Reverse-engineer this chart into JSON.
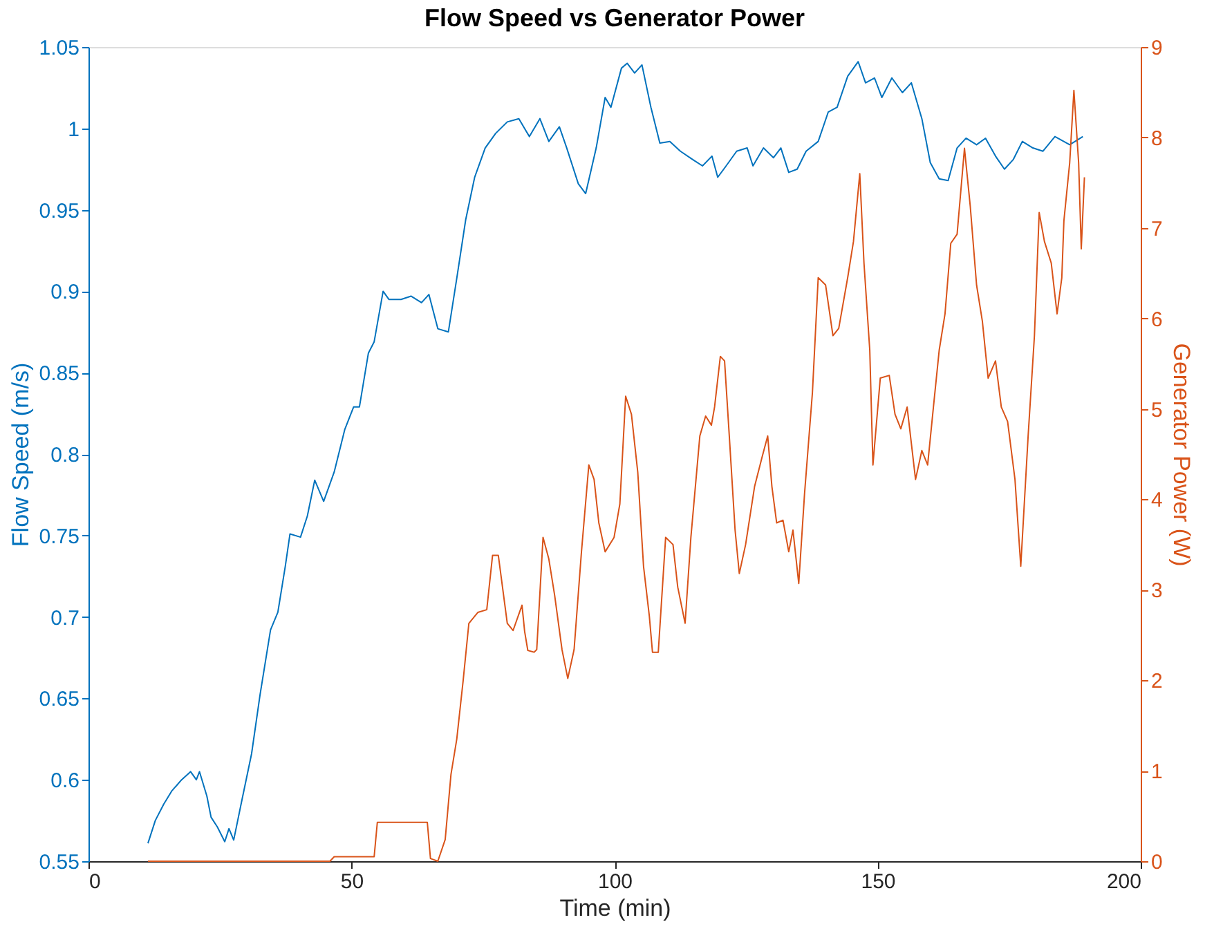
{
  "chart_data": {
    "type": "line",
    "title": "Flow Speed vs Generator Power",
    "xlabel": "Time (min)",
    "ylabel": "Flow Speed (m/s)",
    "y2label": "Generator Power (W)",
    "xlim": [
      0,
      200
    ],
    "xticks": [
      0,
      50,
      100,
      150,
      200
    ],
    "ylim": [
      0.55,
      1.05
    ],
    "yticks": [
      0.55,
      0.6,
      0.65,
      0.7,
      0.75,
      0.8,
      0.85,
      0.9,
      0.95,
      1,
      1.05
    ],
    "y2lim": [
      0,
      9
    ],
    "y2ticks": [
      0,
      1,
      2,
      3,
      4,
      5,
      6,
      7,
      8,
      9
    ],
    "marker": "none",
    "line_style": "solid",
    "series": [
      {
        "color": "#0072bd",
        "axis": "y",
        "x": [
          11.3,
          12.7,
          14.3,
          15.8,
          17.7,
          19.4,
          20.5,
          21.1,
          22.5,
          23.3,
          24.5,
          25.9,
          26.7,
          27.6,
          29,
          31,
          32.6,
          34.6,
          36,
          37.4,
          38.3,
          40.3,
          41.6,
          43,
          44.7,
          46.7,
          48.7,
          50.4,
          51.5,
          53.2,
          54.3,
          56,
          57.1,
          59.4,
          61.3,
          63.3,
          64.7,
          66.4,
          68.4,
          70,
          71.7,
          73.4,
          75.4,
          77.4,
          79.6,
          81.8,
          83.8,
          85.8,
          87.5,
          89.5,
          90.9,
          93.1,
          94.5,
          96.5,
          98.2,
          99.3,
          101.3,
          102.4,
          103.8,
          105.2,
          106.9,
          108.6,
          110.5,
          112.5,
          114.8,
          116.7,
          118.5,
          119.6,
          121.2,
          123.2,
          125.2,
          126.3,
          128.3,
          130.2,
          131.6,
          133.1,
          134.7,
          136.4,
          138.7,
          140.6,
          142.3,
          144.3,
          146.3,
          147.7,
          149.4,
          150.8,
          152.7,
          154.7,
          156.4,
          158.4,
          160,
          161.7,
          163.4,
          165.1,
          166.8,
          168.8,
          170.5,
          172.4,
          174.1,
          175.8,
          177.5,
          179.5,
          181.4,
          183.7,
          186.5,
          189
        ],
        "values": [
          0.561,
          0.575,
          0.585,
          0.593,
          0.6,
          0.605,
          0.6,
          0.605,
          0.59,
          0.577,
          0.571,
          0.562,
          0.57,
          0.563,
          0.585,
          0.616,
          0.652,
          0.692,
          0.703,
          0.731,
          0.751,
          0.749,
          0.762,
          0.784,
          0.771,
          0.789,
          0.815,
          0.829,
          0.829,
          0.862,
          0.869,
          0.9,
          0.895,
          0.895,
          0.897,
          0.893,
          0.898,
          0.877,
          0.875,
          0.908,
          0.944,
          0.97,
          0.988,
          0.997,
          1.004,
          1.006,
          0.995,
          1.006,
          0.992,
          1.001,
          0.988,
          0.966,
          0.96,
          0.988,
          1.019,
          1.013,
          1.037,
          1.04,
          1.034,
          1.039,
          1.013,
          0.991,
          0.992,
          0.986,
          0.981,
          0.977,
          0.983,
          0.97,
          0.977,
          0.986,
          0.988,
          0.977,
          0.988,
          0.982,
          0.988,
          0.973,
          0.975,
          0.986,
          0.992,
          1.01,
          1.013,
          1.032,
          1.041,
          1.028,
          1.031,
          1.019,
          1.031,
          1.022,
          1.028,
          1.006,
          0.979,
          0.969,
          0.968,
          0.988,
          0.994,
          0.99,
          0.994,
          0.983,
          0.975,
          0.981,
          0.992,
          0.988,
          0.986,
          0.995,
          0.99,
          0.995
        ]
      },
      {
        "color": "#d95319",
        "axis": "y2",
        "x": [
          11.3,
          45.9,
          46.7,
          54.3,
          54.9,
          64.4,
          65,
          66.4,
          67.8,
          68.9,
          70,
          71.2,
          72.3,
          74,
          75.7,
          76.8,
          77.9,
          79.6,
          80.7,
          82.4,
          82.9,
          83.5,
          84.7,
          85.2,
          86.4,
          87.5,
          88.6,
          90,
          91.1,
          92.3,
          93.7,
          95.1,
          96.1,
          97,
          98.2,
          99.9,
          101,
          102.1,
          103.2,
          104.4,
          105.5,
          106.6,
          107.2,
          108.3,
          109.7,
          111.1,
          112,
          113.4,
          114.5,
          116.2,
          117.3,
          118.4,
          119,
          120.1,
          120.9,
          121.8,
          122.9,
          123.7,
          124.9,
          126.6,
          128,
          129.1,
          129.9,
          130.8,
          132,
          133.1,
          133.9,
          135,
          136.1,
          137.6,
          138.7,
          140.1,
          141.5,
          142.6,
          144.3,
          145.4,
          146.6,
          147.4,
          148.5,
          149.1,
          150.5,
          152.2,
          153.3,
          154.4,
          155.6,
          157.2,
          158.4,
          159.5,
          160.6,
          161.7,
          162.8,
          163.9,
          165.1,
          166.5,
          167.6,
          168.8,
          169.9,
          171,
          172.4,
          173.5,
          174.7,
          176.1,
          177.2,
          178.6,
          179.8,
          180.7,
          181.7,
          183,
          184.1,
          185,
          185.4,
          186.5,
          187.3,
          188.2,
          188.7,
          189.3
        ],
        "values": [
          0,
          0,
          0.05,
          0.05,
          0.43,
          0.43,
          0.03,
          0,
          0.24,
          0.96,
          1.35,
          1.99,
          2.63,
          2.75,
          2.78,
          3.38,
          3.38,
          2.63,
          2.55,
          2.83,
          2.54,
          2.33,
          2.31,
          2.34,
          3.58,
          3.34,
          2.94,
          2.34,
          2.02,
          2.34,
          3.42,
          4.38,
          4.22,
          3.74,
          3.42,
          3.58,
          3.95,
          5.14,
          4.94,
          4.3,
          3.26,
          2.71,
          2.31,
          2.31,
          3.58,
          3.5,
          3.03,
          2.63,
          3.58,
          4.7,
          4.92,
          4.82,
          5.02,
          5.58,
          5.53,
          4.7,
          3.66,
          3.18,
          3.5,
          4.14,
          4.46,
          4.7,
          4.14,
          3.74,
          3.77,
          3.42,
          3.66,
          3.07,
          4.06,
          5.18,
          6.45,
          6.37,
          5.81,
          5.89,
          6.45,
          6.85,
          7.6,
          6.61,
          5.65,
          4.38,
          5.34,
          5.37,
          4.94,
          4.78,
          5.02,
          4.22,
          4.54,
          4.38,
          5.02,
          5.65,
          6.05,
          6.83,
          6.93,
          7.88,
          7.24,
          6.37,
          5.97,
          5.34,
          5.53,
          5.02,
          4.86,
          4.22,
          3.26,
          4.7,
          5.81,
          7.17,
          6.85,
          6.61,
          6.05,
          6.45,
          7.08,
          7.72,
          8.52,
          7.72,
          6.77,
          7.56
        ]
      }
    ]
  }
}
